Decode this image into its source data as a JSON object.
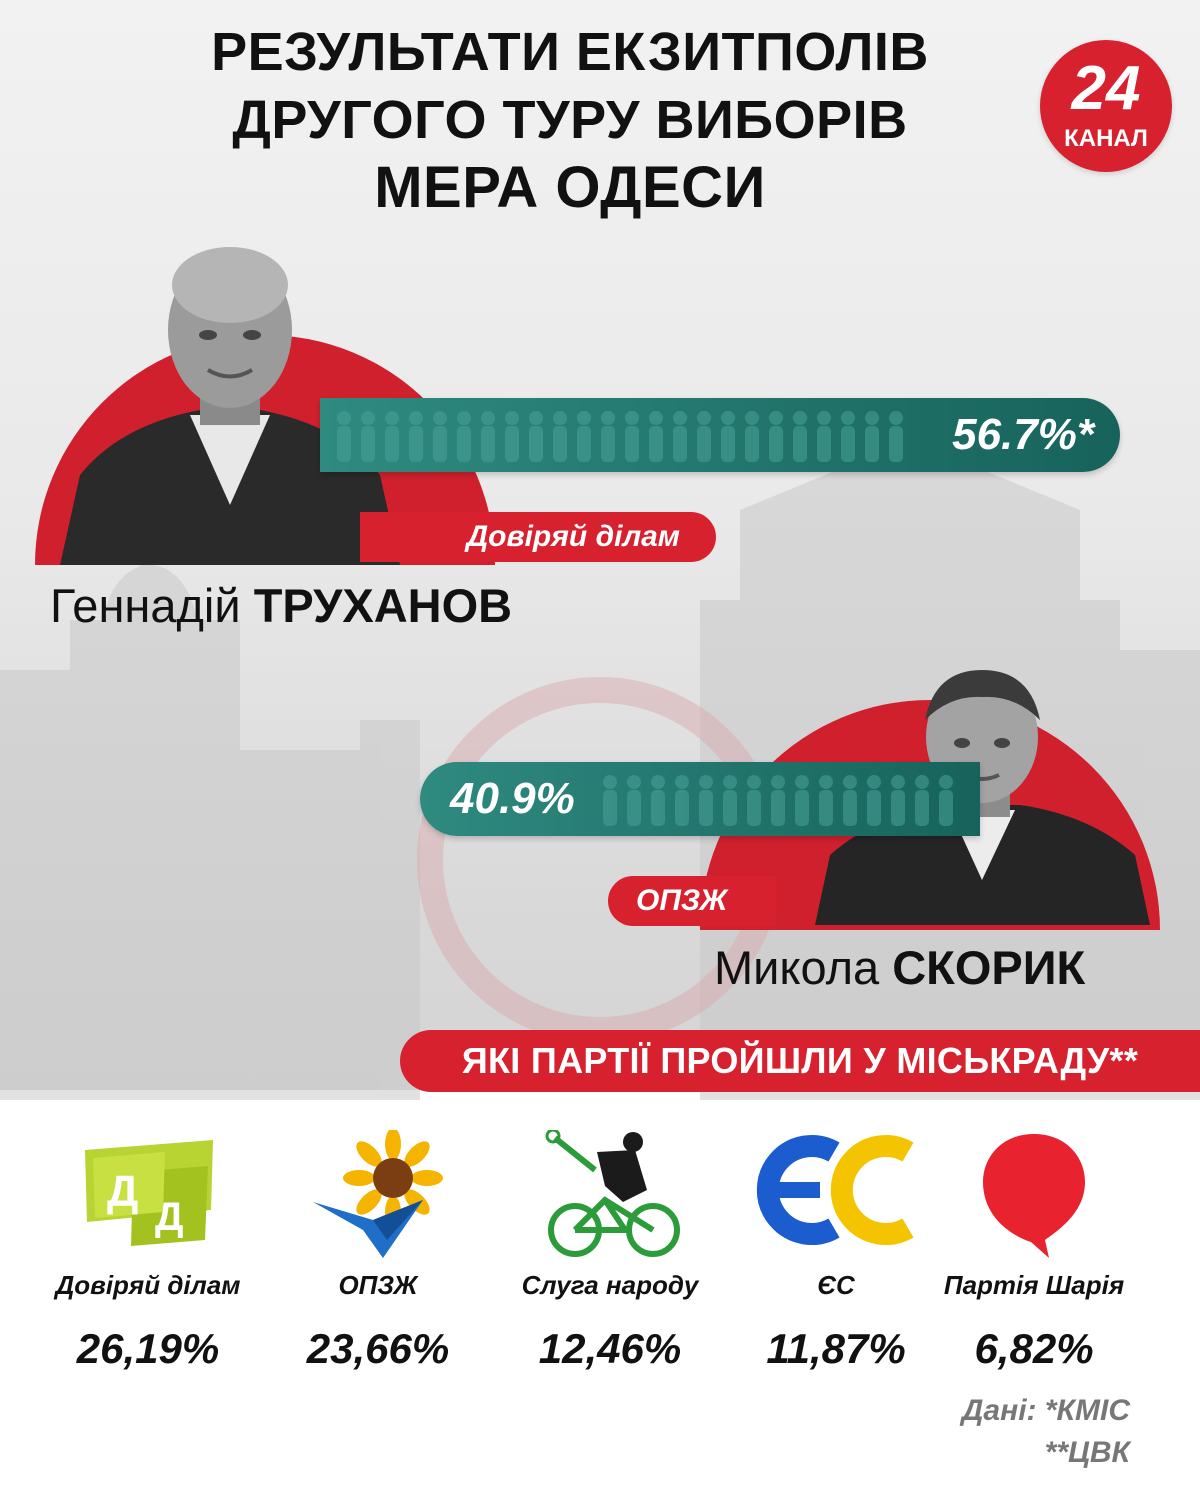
{
  "title": {
    "line1": "РЕЗУЛЬТАТИ ЕКЗИТПОЛІВ",
    "line2": "ДРУГОГО ТУРУ ВИБОРІВ",
    "line3": "МЕРА ОДЕСИ"
  },
  "logo": {
    "number": "24",
    "word": "КАНАЛ"
  },
  "colors": {
    "accent_red": "#d7212f",
    "bar_teal": "#1f746b",
    "text_dark": "#111111"
  },
  "candidates": [
    {
      "first_name": "Геннадій",
      "last_name": "ТРУХАНОВ",
      "party": "Довіряй ділам",
      "result": "56.7%*",
      "result_value": 56.7
    },
    {
      "first_name": "Микола",
      "last_name": "СКОРИК",
      "party": "ОПЗЖ",
      "result": "40.9%",
      "result_value": 40.9
    }
  ],
  "council_banner": "ЯКІ ПАРТІЇ ПРОЙШЛИ У МІСЬКРАДУ**",
  "parties": [
    {
      "name": "Довіряй ділам",
      "value": "26,19%",
      "icon": "dd-logo-icon"
    },
    {
      "name": "ОПЗЖ",
      "value": "23,66%",
      "icon": "opzzh-sunflower-icon"
    },
    {
      "name": "Слуга народу",
      "value": "12,46%",
      "icon": "sluha-narodu-cyclist-icon"
    },
    {
      "name": "ЄС",
      "value": "11,87%",
      "icon": "yes-logo-icon"
    },
    {
      "name": "Партія Шарія",
      "value": "6,82%",
      "icon": "sharii-balloon-icon"
    }
  ],
  "sources": {
    "line1": "Дані: *КМІС",
    "line2": "**ЦВК"
  }
}
